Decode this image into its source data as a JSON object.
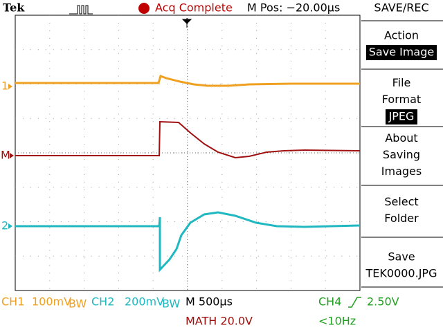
{
  "header": {
    "brand": "Tek",
    "status": "Acq Complete",
    "position": "M Pos: −20.00µs",
    "menu_title": "SAVE/REC"
  },
  "markers": {
    "ch1": "1",
    "math": "M",
    "ch2": "2"
  },
  "menu": [
    {
      "label": "Action",
      "value": "Save Image"
    },
    {
      "label": "File Format",
      "value": "JPEG"
    },
    {
      "label": "About Saving Images"
    },
    {
      "label": "Select Folder"
    },
    {
      "label": "Save",
      "value": "TEK0000.JPG"
    }
  ],
  "footer": {
    "ch1": {
      "name": "CH1",
      "scale": "100mV",
      "bw": "BW"
    },
    "ch2": {
      "name": "CH2",
      "scale": "200mV",
      "bw": "BW"
    },
    "timebase": "M 500µs",
    "math": "MATH 20.0V",
    "trigger": {
      "source": "CH4",
      "level": "2.50V",
      "frequency": "<10Hz"
    }
  }
}
